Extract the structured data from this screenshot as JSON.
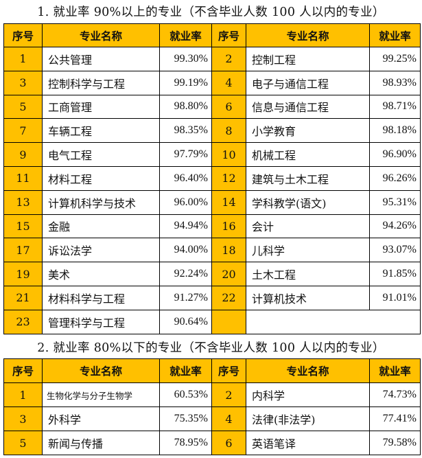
{
  "section1": {
    "title": "1. 就业率 90%以上的专业（不含毕业人数 100 人以内的专业）",
    "headers": {
      "num": "序号",
      "name": "专业名称",
      "rate": "就业率"
    },
    "rows": [
      [
        {
          "num": "1",
          "name": "公共管理",
          "rate": "99.30%"
        },
        {
          "num": "2",
          "name": "控制工程",
          "rate": "99.25%"
        }
      ],
      [
        {
          "num": "3",
          "name": "控制科学与工程",
          "rate": "99.19%"
        },
        {
          "num": "4",
          "name": "电子与通信工程",
          "rate": "98.93%"
        }
      ],
      [
        {
          "num": "5",
          "name": "工商管理",
          "rate": "98.80%"
        },
        {
          "num": "6",
          "name": "信息与通信工程",
          "rate": "98.71%"
        }
      ],
      [
        {
          "num": "7",
          "name": "车辆工程",
          "rate": "98.35%"
        },
        {
          "num": "8",
          "name": "小学教育",
          "rate": "98.18%"
        }
      ],
      [
        {
          "num": "9",
          "name": "电气工程",
          "rate": "97.79%"
        },
        {
          "num": "10",
          "name": "机械工程",
          "rate": "96.90%"
        }
      ],
      [
        {
          "num": "11",
          "name": "材料工程",
          "rate": "96.40%"
        },
        {
          "num": "12",
          "name": "建筑与土木工程",
          "rate": "96.26%"
        }
      ],
      [
        {
          "num": "13",
          "name": "计算机科学与技术",
          "rate": "96.00%"
        },
        {
          "num": "14",
          "name": "学科教学(语文)",
          "rate": "95.31%"
        }
      ],
      [
        {
          "num": "15",
          "name": "金融",
          "rate": "94.94%"
        },
        {
          "num": "16",
          "name": "会计",
          "rate": "94.26%"
        }
      ],
      [
        {
          "num": "17",
          "name": "诉讼法学",
          "rate": "94.00%"
        },
        {
          "num": "18",
          "name": "儿科学",
          "rate": "93.07%"
        }
      ],
      [
        {
          "num": "19",
          "name": "美术",
          "rate": "92.24%"
        },
        {
          "num": "20",
          "name": "土木工程",
          "rate": "91.85%"
        }
      ],
      [
        {
          "num": "21",
          "name": "材料科学与工程",
          "rate": "91.27%"
        },
        {
          "num": "22",
          "name": "计算机技术",
          "rate": "91.01%"
        }
      ],
      [
        {
          "num": "23",
          "name": "管理科学与工程",
          "rate": "90.64%"
        },
        null
      ]
    ]
  },
  "section2": {
    "title": "2. 就业率 80%以下的专业（不含毕业人数 100 人以内的专业）",
    "headers": {
      "num": "序号",
      "name": "专业名称",
      "rate": "就业率"
    },
    "rows": [
      [
        {
          "num": "1",
          "name": "生物化学与分子生物学",
          "rate": "60.53%",
          "small": true
        },
        {
          "num": "2",
          "name": "内科学",
          "rate": "74.73%"
        }
      ],
      [
        {
          "num": "3",
          "name": "外科学",
          "rate": "75.35%"
        },
        {
          "num": "4",
          "name": "法律(非法学)",
          "rate": "77.41%"
        }
      ],
      [
        {
          "num": "5",
          "name": "新闻与传播",
          "rate": "78.95%"
        },
        {
          "num": "6",
          "name": "英语笔译",
          "rate": "79.58%"
        }
      ]
    ]
  },
  "colors": {
    "header_bg": "#ffc000",
    "border": "#000000"
  }
}
